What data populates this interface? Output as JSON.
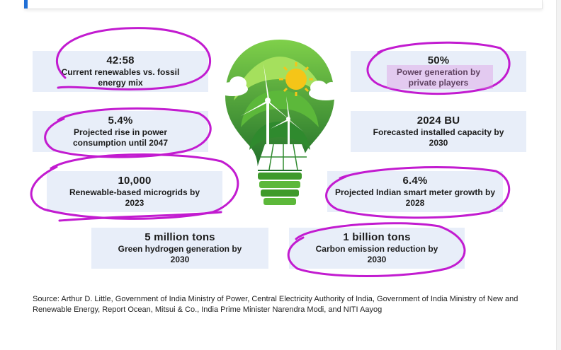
{
  "stats": [
    {
      "value": "42:58",
      "label": "Current renewables vs. fossil energy mix"
    },
    {
      "value": "50%",
      "label": "Power generation by private players"
    },
    {
      "value": "5.4%",
      "label": "Projected rise in power consumption until 2047"
    },
    {
      "value": "2024 BU",
      "label": "Forecasted installed capacity by 2030"
    },
    {
      "value": "10,000",
      "label": "Renewable-based microgrids by 2023"
    },
    {
      "value": "6.4%",
      "label": "Projected Indian smart meter growth by 2028"
    },
    {
      "value": "5 million tons",
      "label": "Green hydrogen generation by 2030"
    },
    {
      "value": "1 billion tons",
      "label": "Carbon emission reduction by 2030"
    }
  ],
  "source": "Source: Arthur D. Little, Government of India Ministry of Power, Central Electricity Authority of India, Government of India Ministry of New and Renewable Energy, Report Ocean, Mitsui & Co., India Prime Minister Narendra Modi, and NITI Aayog",
  "colors": {
    "box": "#e8eef9",
    "annotation": "#c21bd0",
    "leaf": "#3f9a2b",
    "sun": "#f5c518",
    "accent": "#1f6fd6"
  }
}
